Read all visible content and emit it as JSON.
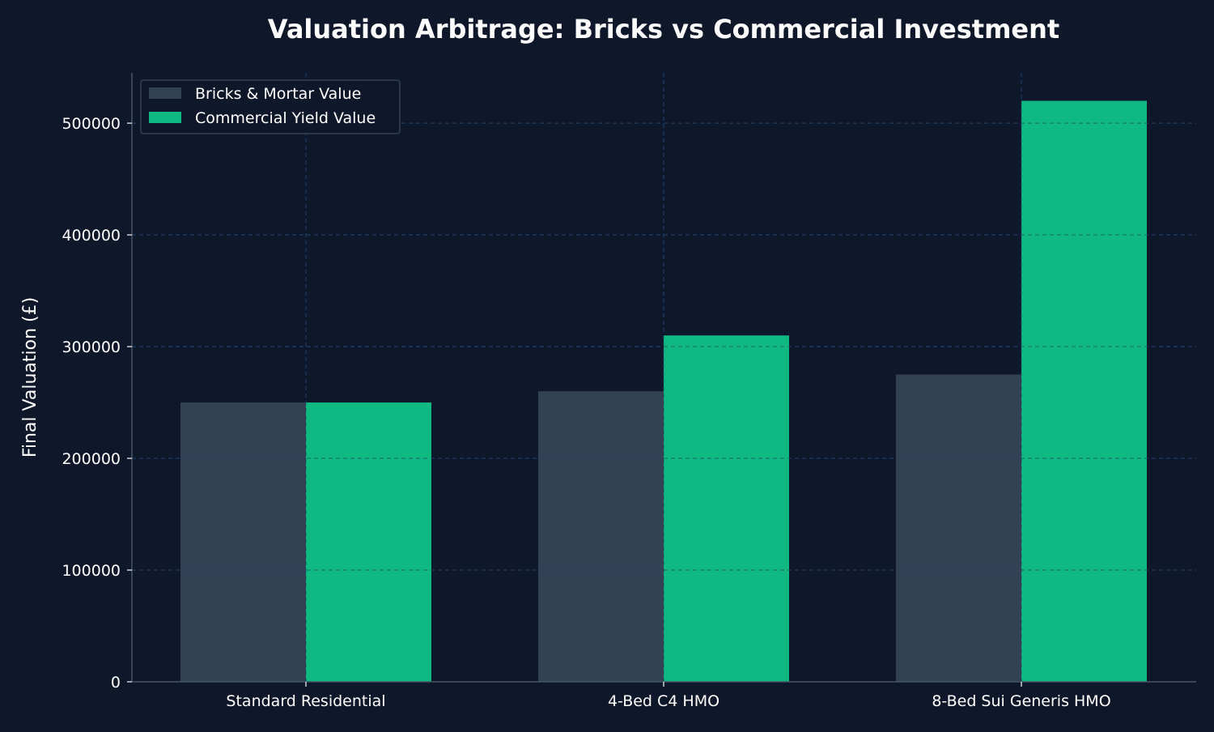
{
  "chart_data": {
    "type": "bar",
    "title": "Valuation Arbitrage: Bricks vs Commercial Investment",
    "xlabel": "",
    "ylabel": "Final Valuation (£)",
    "categories": [
      "Standard Residential",
      "4-Bed C4 HMO",
      "8-Bed Sui Generis HMO"
    ],
    "series": [
      {
        "name": "Bricks & Mortar Value",
        "values": [
          250000,
          260000,
          275000
        ],
        "color": "#334155"
      },
      {
        "name": "Commercial Yield Value",
        "values": [
          250000,
          310000,
          520000
        ],
        "color": "#10b981"
      }
    ],
    "yticks": [
      0,
      100000,
      200000,
      300000,
      400000,
      500000
    ],
    "ylim": [
      0,
      545000
    ],
    "grid": true,
    "legend": "top-left",
    "colors": {
      "background": "#0f172a",
      "text": "#ffffff",
      "axis": "#475569",
      "grid": "#1e3a5f",
      "legend_border": "#334155"
    }
  }
}
